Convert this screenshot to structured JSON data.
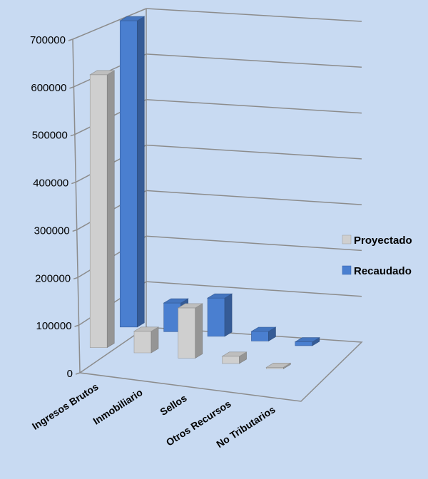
{
  "chart_data": {
    "type": "bar",
    "title": "",
    "xlabel": "",
    "ylabel": "",
    "categories": [
      "Ingresos Brutos",
      "Inmobiliario",
      "Sellos",
      "Otros Recursos",
      "No Tributarios"
    ],
    "series": [
      {
        "name": "Proyectado",
        "values": [
          570000,
          45000,
          105000,
          15000,
          3000
        ],
        "color": "#cfcfcf"
      },
      {
        "name": "Recaudado",
        "values": [
          640000,
          60000,
          80000,
          20000,
          8000
        ],
        "color": "#4a7fd0"
      }
    ],
    "ylim": [
      0,
      700000
    ],
    "yticks": [
      "0",
      "100000",
      "200000",
      "300000",
      "400000",
      "500000",
      "600000",
      "700000"
    ],
    "grid": true,
    "legend_position": "right",
    "projection": "3d-perspective"
  }
}
